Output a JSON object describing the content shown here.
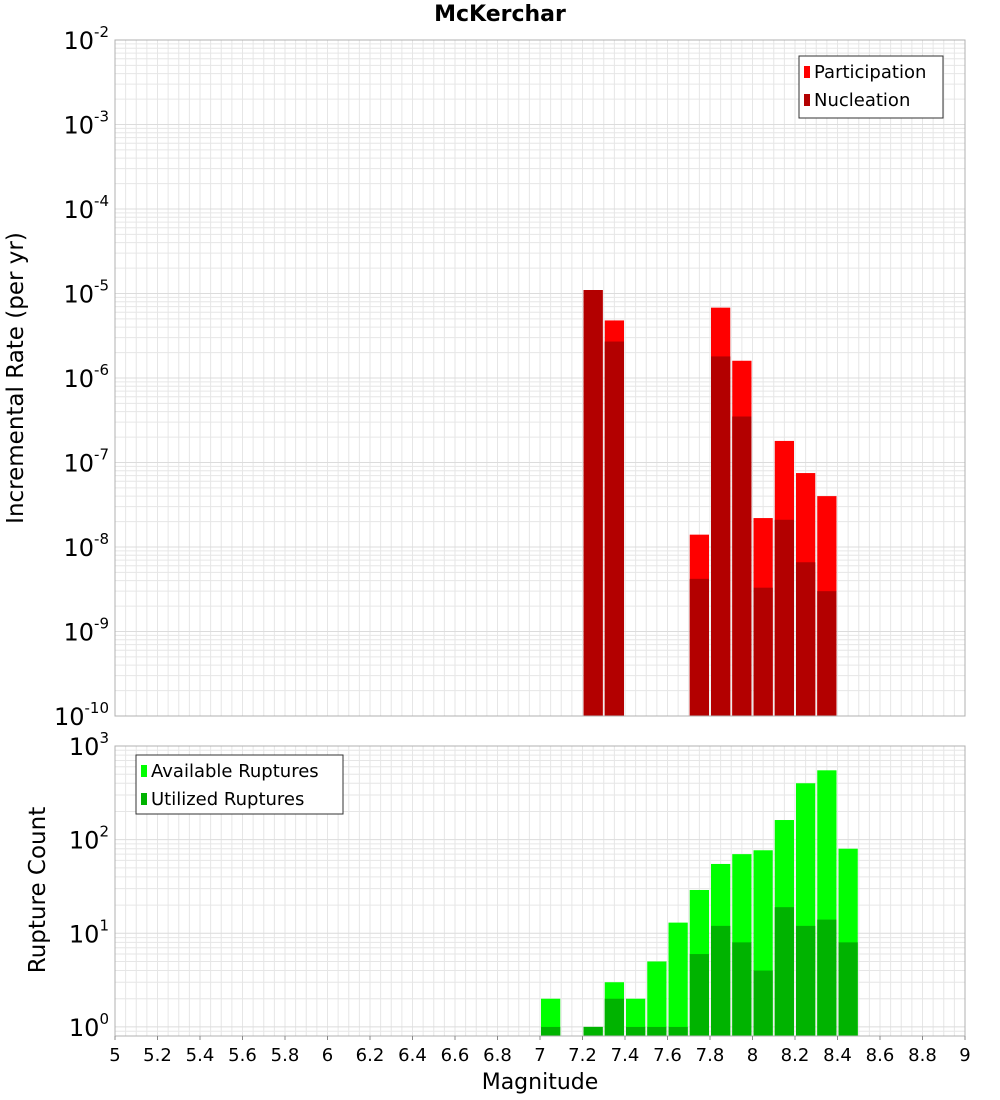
{
  "colors": {
    "participation": "#ff0000",
    "nucleation": "#b30000",
    "available": "#00ff00",
    "utilized": "#00b300",
    "grid": "#e6e6e6",
    "frame": "#b0b0b0"
  },
  "chart_data": [
    {
      "type": "bar",
      "title": "McKerchar",
      "ylabel": "Incremental Rate (per yr)",
      "xlabel": "",
      "xlim": [
        5,
        9
      ],
      "ylim": [
        1e-10,
        0.01
      ],
      "yscale": "log",
      "bar_width": 0.1,
      "grid": true,
      "legend_position": "top-right",
      "series": [
        {
          "name": "Participation",
          "color": "#ff0000",
          "x": [
            7.25,
            7.35,
            7.75,
            7.85,
            7.95,
            8.05,
            8.15,
            8.25,
            8.35
          ],
          "values": [
            1.1e-05,
            4.8e-06,
            1.4e-08,
            6.8e-06,
            1.6e-06,
            2.2e-08,
            1.8e-07,
            7.5e-08,
            4e-08
          ]
        },
        {
          "name": "Nucleation",
          "color": "#b30000",
          "x": [
            7.25,
            7.35,
            7.75,
            7.85,
            7.95,
            8.05,
            8.15,
            8.25,
            8.35
          ],
          "values": [
            1.1e-05,
            2.7e-06,
            4.2e-09,
            1.8e-06,
            3.5e-07,
            3.3e-09,
            2.1e-08,
            6.6e-09,
            3e-09
          ]
        }
      ],
      "yticks": [
        {
          "base": "10",
          "exp": "-10"
        },
        {
          "base": "10",
          "exp": "-9"
        },
        {
          "base": "10",
          "exp": "-8"
        },
        {
          "base": "10",
          "exp": "-7"
        },
        {
          "base": "10",
          "exp": "-6"
        },
        {
          "base": "10",
          "exp": "-5"
        },
        {
          "base": "10",
          "exp": "-4"
        },
        {
          "base": "10",
          "exp": "-3"
        },
        {
          "base": "10",
          "exp": "-2"
        }
      ]
    },
    {
      "type": "bar",
      "title": "",
      "ylabel": "Rupture Count",
      "xlabel": "Magnitude",
      "xlim": [
        5,
        9
      ],
      "ylim": [
        0.8,
        1000
      ],
      "yscale": "log",
      "bar_width": 0.1,
      "grid": true,
      "legend_position": "top-left",
      "series": [
        {
          "name": "Available Ruptures",
          "color": "#00ff00",
          "x": [
            7.05,
            7.25,
            7.35,
            7.45,
            7.55,
            7.65,
            7.75,
            7.85,
            7.95,
            8.05,
            8.15,
            8.25,
            8.35,
            8.45
          ],
          "values": [
            2,
            1,
            3,
            2,
            5,
            13,
            29,
            55,
            70,
            77,
            162,
            400,
            550,
            80
          ]
        },
        {
          "name": "Utilized Ruptures",
          "color": "#00b300",
          "x": [
            7.05,
            7.25,
            7.35,
            7.45,
            7.55,
            7.65,
            7.75,
            7.85,
            7.95,
            8.05,
            8.15,
            8.25,
            8.35,
            8.45
          ],
          "values": [
            1,
            1,
            2,
            1,
            1,
            1,
            6,
            12,
            8,
            4,
            19,
            12,
            14,
            8
          ]
        }
      ],
      "yticks": [
        {
          "base": "10",
          "exp": "0"
        },
        {
          "base": "10",
          "exp": "1"
        },
        {
          "base": "10",
          "exp": "2"
        },
        {
          "base": "10",
          "exp": "3"
        }
      ],
      "xticks": [
        "5",
        "5.2",
        "5.4",
        "5.6",
        "5.8",
        "6",
        "6.2",
        "6.4",
        "6.6",
        "6.8",
        "7",
        "7.2",
        "7.4",
        "7.6",
        "7.8",
        "8",
        "8.2",
        "8.4",
        "8.6",
        "8.8",
        "9"
      ]
    }
  ]
}
